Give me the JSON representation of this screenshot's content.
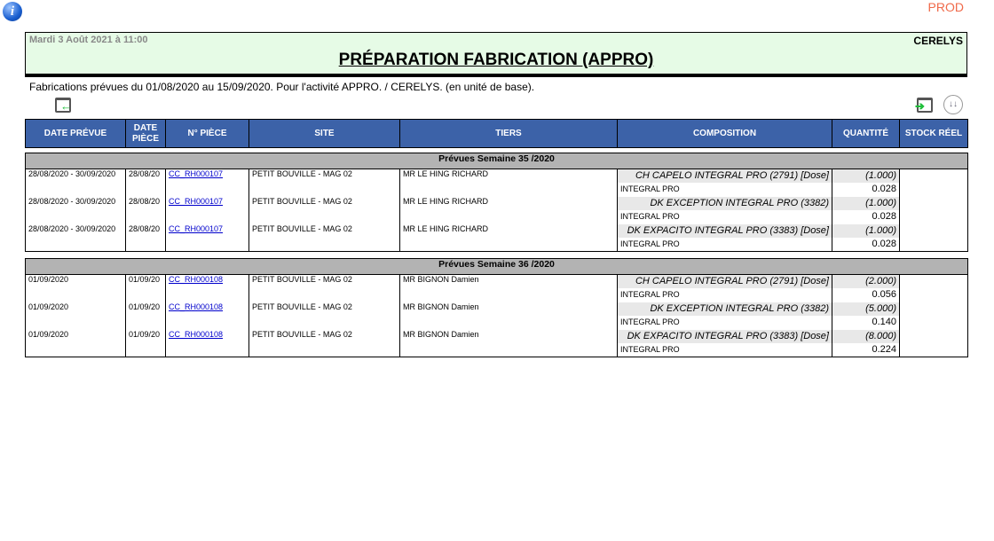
{
  "env": "PROD",
  "header": {
    "date": "Mardi 3 Août 2021 à 11:00",
    "company": "CERELYS",
    "title": "PRÉPARATION FABRICATION (APPRO)"
  },
  "subtitle": "Fabrications prévues du 01/08/2020 au 15/09/2020. Pour l'activité APPRO. / CERELYS. (en unité de base).",
  "columns": [
    "DATE PRÉVUE",
    "DATE PIÈCE",
    "N° PIÈCE",
    "SITE",
    "TIERS",
    "COMPOSITION",
    "QUANTITÉ",
    "STOCK RÉEL"
  ],
  "groups": [
    {
      "label": "Prévues Semaine 35 /2020",
      "rows": [
        {
          "date_prevue": "28/08/2020 - 30/09/2020",
          "date_piece": "28/08/20",
          "piece": "CC_RH000107",
          "site": "PETIT BOUVILLE - MAG 02",
          "tiers": "MR LE HING RICHARD",
          "composition": "CH CAPELO INTEGRAL PRO (2791) [Dose]",
          "qty": "(1.000)",
          "component": "INTEGRAL PRO",
          "component_qty": "0.028"
        },
        {
          "date_prevue": "28/08/2020 - 30/09/2020",
          "date_piece": "28/08/20",
          "piece": "CC_RH000107",
          "site": "PETIT BOUVILLE - MAG 02",
          "tiers": "MR LE HING RICHARD",
          "composition": "DK EXCEPTION INTEGRAL PRO (3382)",
          "qty": "(1.000)",
          "component": "INTEGRAL PRO",
          "component_qty": "0.028"
        },
        {
          "date_prevue": "28/08/2020 - 30/09/2020",
          "date_piece": "28/08/20",
          "piece": "CC_RH000107",
          "site": "PETIT BOUVILLE - MAG 02",
          "tiers": "MR LE HING RICHARD",
          "composition": "DK EXPACITO INTEGRAL PRO (3383) [Dose]",
          "qty": "(1.000)",
          "component": "INTEGRAL PRO",
          "component_qty": "0.028"
        }
      ]
    },
    {
      "label": "Prévues Semaine 36 /2020",
      "rows": [
        {
          "date_prevue": "01/09/2020",
          "date_piece": "01/09/20",
          "piece": "CC_RH000108",
          "site": "PETIT BOUVILLE - MAG 02",
          "tiers": "MR BIGNON Damien",
          "composition": "CH CAPELO INTEGRAL PRO (2791) [Dose]",
          "qty": "(2.000)",
          "component": "INTEGRAL PRO",
          "component_qty": "0.056"
        },
        {
          "date_prevue": "01/09/2020",
          "date_piece": "01/09/20",
          "piece": "CC_RH000108",
          "site": "PETIT BOUVILLE - MAG 02",
          "tiers": "MR BIGNON Damien",
          "composition": "DK EXCEPTION INTEGRAL PRO (3382)",
          "qty": "(5.000)",
          "component": "INTEGRAL PRO",
          "component_qty": "0.140"
        },
        {
          "date_prevue": "01/09/2020",
          "date_piece": "01/09/20",
          "piece": "CC_RH000108",
          "site": "PETIT BOUVILLE - MAG 02",
          "tiers": "MR BIGNON Damien",
          "composition": "DK EXPACITO INTEGRAL PRO (3383) [Dose]",
          "qty": "(8.000)",
          "component": "INTEGRAL PRO",
          "component_qty": "0.224"
        }
      ]
    }
  ]
}
